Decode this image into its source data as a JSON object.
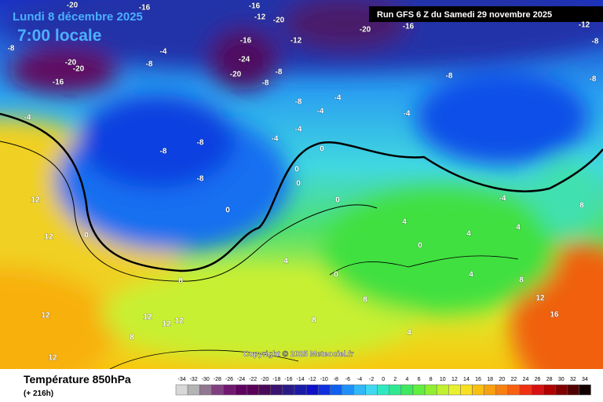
{
  "header": {
    "date": "Lundi 8 décembre 2025",
    "time": "7:00 locale",
    "run": "Run GFS 6 Z du Samedi 29 novembre 2025"
  },
  "copyright": "Copyright © 2025 Meteociel.fr",
  "footer": {
    "title": "Température 850hPa",
    "subtitle": "(+ 216h)"
  },
  "legend": {
    "values": [
      -34,
      -32,
      -30,
      -28,
      -26,
      -24,
      -22,
      -20,
      -18,
      -16,
      -14,
      -12,
      -10,
      -8,
      -6,
      -4,
      -2,
      0,
      2,
      4,
      6,
      8,
      10,
      12,
      14,
      16,
      18,
      20,
      22,
      24,
      26,
      28,
      30,
      32,
      34
    ],
    "colors": [
      "#d8d8d8",
      "#b4b4b4",
      "#907890",
      "#804080",
      "#701870",
      "#600060",
      "#5a005a",
      "#4a0a5a",
      "#3a1470",
      "#2a1a88",
      "#1a1aa8",
      "#1010c8",
      "#1030e0",
      "#1060f0",
      "#2090f8",
      "#30b8f8",
      "#40d8f0",
      "#30e8c0",
      "#30e890",
      "#40e860",
      "#60f040",
      "#90f030",
      "#c0f030",
      "#e8f030",
      "#f8e020",
      "#f8c010",
      "#f8a010",
      "#f88010",
      "#f86010",
      "#f03010",
      "#d81010",
      "#b00000",
      "#800000",
      "#500000",
      "#100000"
    ]
  },
  "map_labels": [
    "-20",
    "-16",
    "-16",
    "-12",
    "-20",
    "-16",
    "-24",
    "-20",
    "-12",
    "-16",
    "-20",
    "-8",
    "-20",
    "-20",
    "-16",
    "-8",
    "-4",
    "-8",
    "-8",
    "-8",
    "-8",
    "-4",
    "-4",
    "-4",
    "-4",
    "-4",
    "-4",
    "-8",
    "-8",
    "-8",
    "0",
    "0",
    "0",
    "0",
    "0",
    "0",
    "0",
    "4",
    "4",
    "4",
    "4",
    "4",
    "4",
    "-4",
    "8",
    "8",
    "8",
    "12",
    "12",
    "12",
    "12",
    "12",
    "12",
    "12",
    "16",
    "12",
    "8",
    "-12",
    "-8",
    "-8",
    "8",
    "8",
    "0"
  ]
}
